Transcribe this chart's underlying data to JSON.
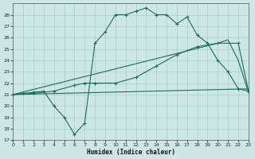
{
  "bg_color": "#cde8e4",
  "grid_color": "#a8cfc8",
  "line_color": "#1a6b60",
  "xlabel": "Humidex (Indice chaleur)",
  "xlim": [
    0,
    23
  ],
  "ylim": [
    17,
    29
  ],
  "yticks": [
    17,
    18,
    19,
    20,
    21,
    22,
    23,
    24,
    25,
    26,
    27,
    28
  ],
  "xticks": [
    0,
    1,
    2,
    3,
    4,
    5,
    6,
    7,
    8,
    9,
    10,
    11,
    12,
    13,
    14,
    15,
    16,
    17,
    18,
    19,
    20,
    21,
    22,
    23
  ],
  "series": [
    {
      "x": [
        0,
        1,
        2,
        3,
        4,
        5,
        6,
        7,
        8,
        9,
        10,
        11,
        12,
        13,
        14,
        15,
        16,
        17,
        18,
        19,
        20,
        21,
        22,
        23
      ],
      "y": [
        21,
        21.1,
        21.2,
        21.3,
        20,
        19,
        17.5,
        18.5,
        25.5,
        26.5,
        28,
        28,
        28.3,
        28.6,
        28,
        28,
        27.2,
        27.8,
        26.2,
        25.5,
        24,
        23,
        21.5,
        21.3
      ],
      "marker": true
    },
    {
      "x": [
        0,
        20,
        21,
        22,
        23
      ],
      "y": [
        21,
        25.5,
        25.8,
        24,
        21.2
      ],
      "marker": false
    },
    {
      "x": [
        0,
        23
      ],
      "y": [
        21,
        21.5
      ],
      "marker": false
    },
    {
      "x": [
        0,
        2,
        4,
        6,
        7,
        8,
        10,
        12,
        14,
        16,
        18,
        20,
        22,
        23
      ],
      "y": [
        21,
        21.1,
        21.3,
        21.8,
        22,
        22,
        22,
        22.5,
        23.5,
        24.5,
        25.2,
        25.5,
        25.5,
        21.3
      ],
      "marker": true
    }
  ]
}
